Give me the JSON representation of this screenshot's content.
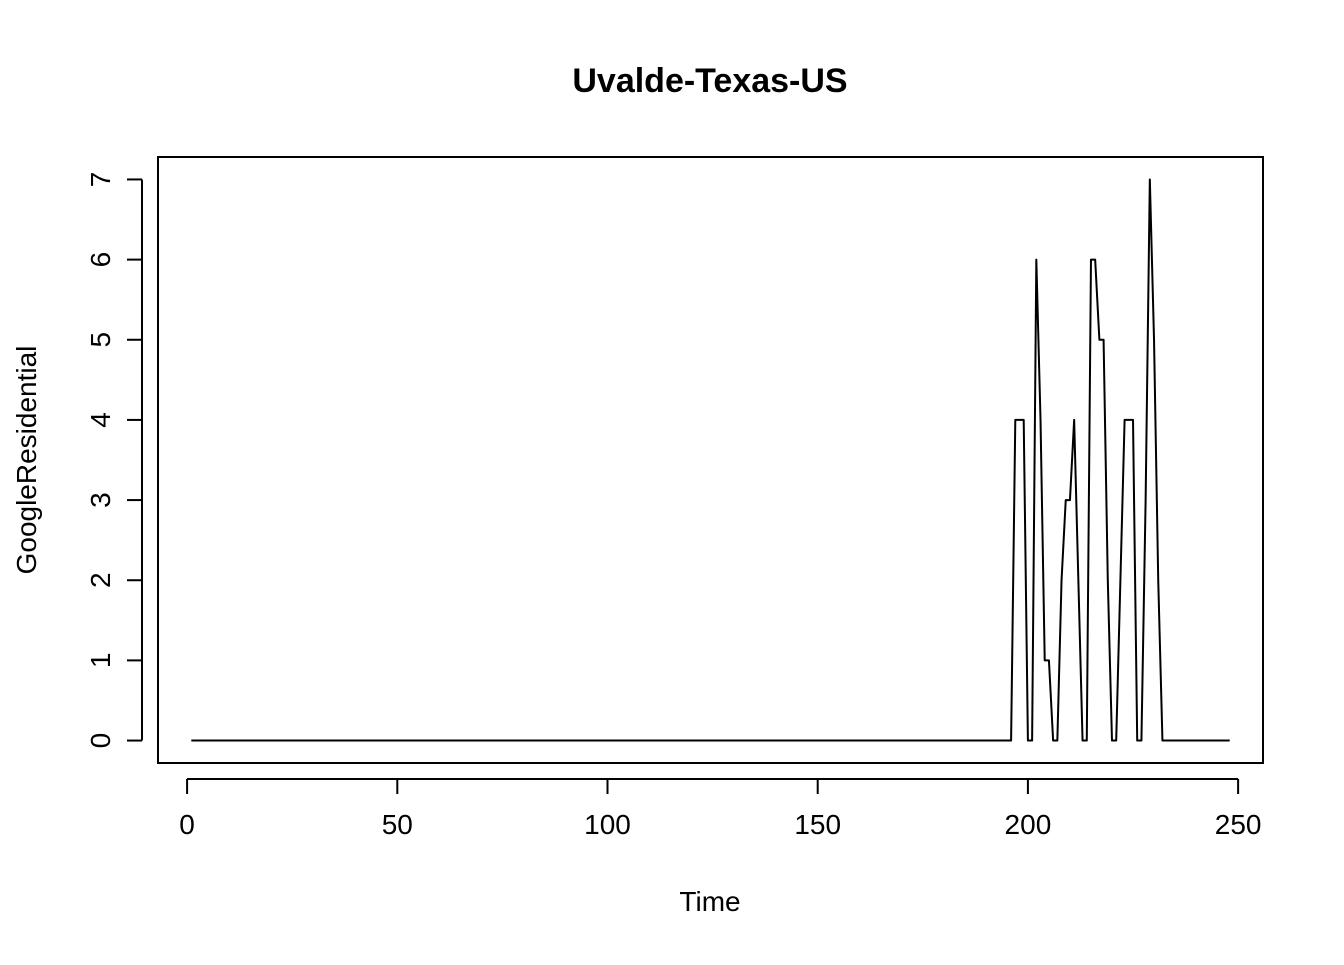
{
  "chart_data": {
    "type": "line",
    "title": "Uvalde-Texas-US",
    "xlabel": "Time",
    "ylabel": "GoogleResidential",
    "xlim": [
      -6.92,
      255.92
    ],
    "ylim": [
      -0.28,
      7.28
    ],
    "x_ticks": [
      0,
      50,
      100,
      150,
      200,
      250
    ],
    "x_tick_labels": [
      "0",
      "50",
      "100",
      "150",
      "200",
      "250"
    ],
    "y_ticks": [
      0,
      1,
      2,
      3,
      4,
      5,
      6,
      7
    ],
    "y_tick_labels": [
      "0",
      "1",
      "2",
      "3",
      "4",
      "5",
      "6",
      "7"
    ],
    "grid": false,
    "series": [
      {
        "name": "GoogleResidential",
        "color": "#000000",
        "x": [
          1,
          196,
          197,
          198,
          199,
          200,
          201,
          202,
          203,
          204,
          205,
          206,
          207,
          208,
          209,
          210,
          211,
          212,
          213,
          214,
          215,
          216,
          217,
          218,
          219,
          220,
          221,
          222,
          223,
          224,
          225,
          226,
          227,
          228,
          229,
          230,
          231,
          232,
          233,
          234,
          235,
          248
        ],
        "values": [
          0,
          0,
          4,
          4,
          4,
          0,
          0,
          6,
          4,
          1,
          1,
          0,
          0,
          2,
          3,
          3,
          4,
          2,
          0,
          0,
          6,
          6,
          5,
          5,
          2,
          0,
          0,
          2,
          4,
          4,
          4,
          0,
          0,
          3,
          7,
          5,
          2,
          0,
          0,
          0,
          0,
          0
        ]
      }
    ]
  }
}
